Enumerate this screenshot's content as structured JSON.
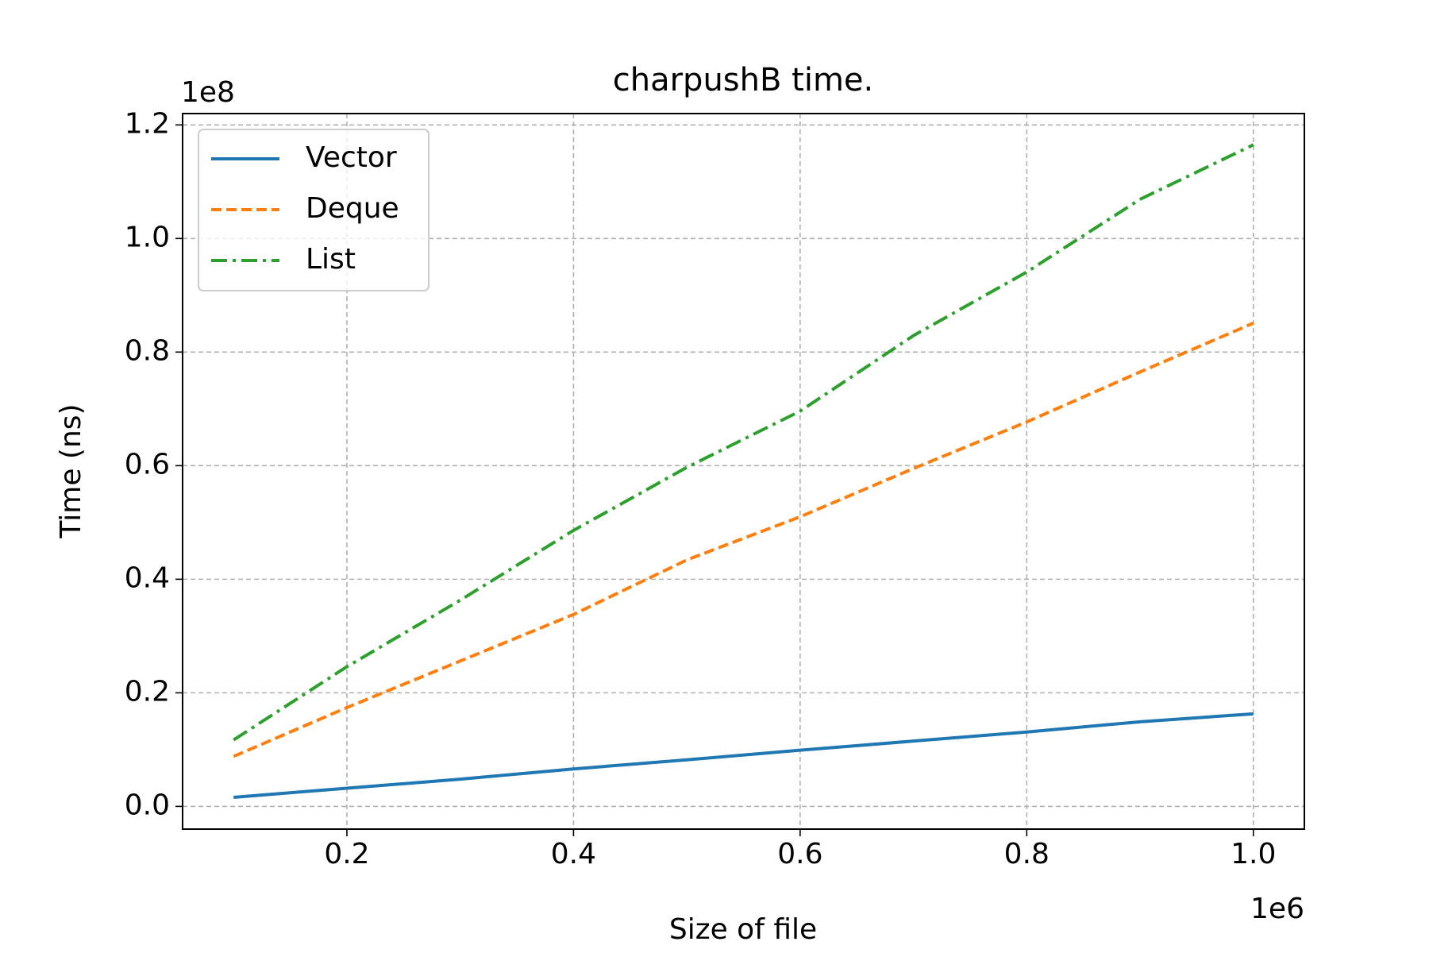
{
  "chart_data": {
    "type": "line",
    "title": "charpushB time.",
    "x_label": "Size of file",
    "y_label": "Time (ns)",
    "x_offset_label": "1e6",
    "y_offset_label": "1e8",
    "x": [
      100000,
      200000,
      300000,
      400000,
      500000,
      600000,
      700000,
      800000,
      900000,
      1000000
    ],
    "series": [
      {
        "name": "Vector",
        "color": "#1f77b4",
        "linestyle": "solid",
        "values": [
          1600000,
          3200000,
          4800000,
          6600000,
          8200000,
          9900000,
          11500000,
          13100000,
          14900000,
          16300000
        ]
      },
      {
        "name": "Deque",
        "color": "#ff7f0e",
        "linestyle": "dashed",
        "values": [
          8800000,
          17400000,
          25600000,
          33800000,
          43400000,
          51000000,
          59500000,
          67700000,
          76500000,
          85100000
        ]
      },
      {
        "name": "List",
        "color": "#2ca02c",
        "linestyle": "dashdot",
        "values": [
          11700000,
          24600000,
          36300000,
          48600000,
          59700000,
          69600000,
          82900000,
          94100000,
          106900000,
          116500000
        ]
      }
    ],
    "xlim": [
      55000,
      1045000
    ],
    "xticks": [
      {
        "value": 200000,
        "label": "0.2"
      },
      {
        "value": 400000,
        "label": "0.4"
      },
      {
        "value": 600000,
        "label": "0.6"
      },
      {
        "value": 800000,
        "label": "0.8"
      },
      {
        "value": 1000000,
        "label": "1.0"
      }
    ],
    "ylim": [
      -4000000,
      122000000
    ],
    "yticks": [
      {
        "value": 0,
        "label": "0.0"
      },
      {
        "value": 20000000,
        "label": "0.2"
      },
      {
        "value": 40000000,
        "label": "0.4"
      },
      {
        "value": 60000000,
        "label": "0.6"
      },
      {
        "value": 80000000,
        "label": "0.8"
      },
      {
        "value": 100000000,
        "label": "1.0"
      },
      {
        "value": 120000000,
        "label": "1.2"
      }
    ],
    "grid": true,
    "legend": "upper left"
  }
}
